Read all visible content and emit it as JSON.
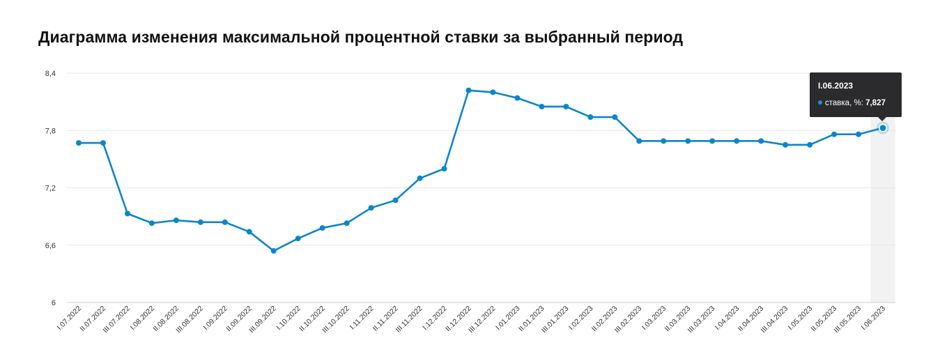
{
  "title": "Диаграмма изменения максимальной процентной ставки за выбранный период",
  "colors": {
    "series": "#0a86c9",
    "grid": "#e6e6e6",
    "highlight_band": "#f2f2f2",
    "tooltip_bg": "#2b2b2e"
  },
  "tooltip": {
    "date": "I.06.2023",
    "series_label": "ставка, %:",
    "value": "7,827"
  },
  "chart_data": {
    "type": "line",
    "title": "Диаграмма изменения максимальной процентной ставки за выбранный период",
    "xlabel": "",
    "ylabel": "",
    "ylim": [
      6,
      8.4
    ],
    "yticks": [
      6,
      6.6,
      7.2,
      7.8,
      8.4
    ],
    "ytick_labels": [
      "6",
      "6,6",
      "7,2",
      "7,8",
      "8,4"
    ],
    "grid": true,
    "highlighted_index": 33,
    "categories": [
      "I.07.2022",
      "II.07.2022",
      "III.07.2022",
      "I.08.2022",
      "II.08.2022",
      "III.08.2022",
      "I.09.2022",
      "II.09.2022",
      "III.09.2022",
      "I.10.2022",
      "II.10.2022",
      "III.10.2022",
      "I.11.2022",
      "II.11.2022",
      "III.11.2022",
      "I.12.2022",
      "II.12.2022",
      "III.12.2022",
      "I.01.2023",
      "II.01.2023",
      "III.01.2023",
      "I.02.2023",
      "II.02.2023",
      "III.02.2023",
      "I.03.2023",
      "II.03.2023",
      "III.03.2023",
      "I.04.2023",
      "II.04.2023",
      "III.04.2023",
      "I.05.2023",
      "II.05.2023",
      "III.05.2023",
      "I.06.2023"
    ],
    "series": [
      {
        "name": "ставка, %",
        "values": [
          7.67,
          7.67,
          6.93,
          6.83,
          6.86,
          6.84,
          6.84,
          6.74,
          6.54,
          6.67,
          6.78,
          6.83,
          6.99,
          7.07,
          7.3,
          7.4,
          8.22,
          8.2,
          8.14,
          8.05,
          8.05,
          7.94,
          7.94,
          7.69,
          7.69,
          7.69,
          7.69,
          7.69,
          7.69,
          7.65,
          7.65,
          7.76,
          7.76,
          7.827
        ]
      }
    ]
  }
}
